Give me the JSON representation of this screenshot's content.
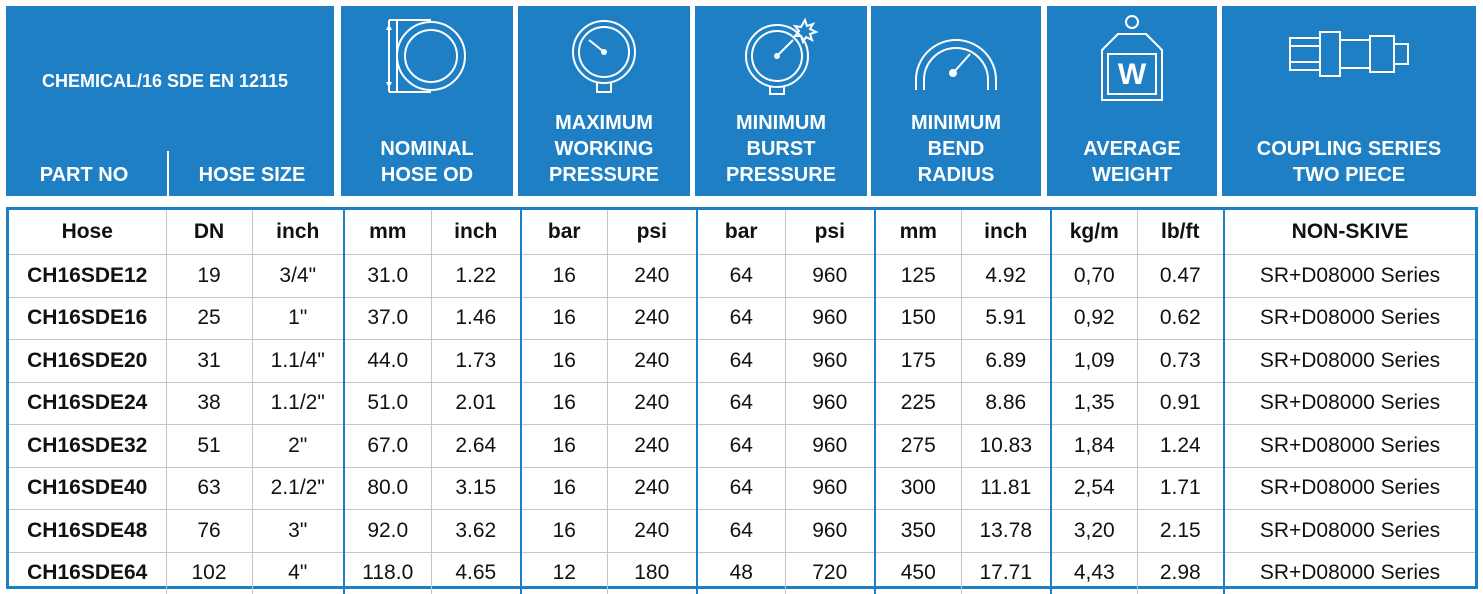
{
  "header": {
    "title": "CHEMICAL/16 SDE EN 12115",
    "part_no": "PART NO",
    "hose_size": "HOSE SIZE",
    "columns": [
      {
        "lines": [
          "NOMINAL",
          "HOSE OD"
        ],
        "icon": "hose-cross-section-icon"
      },
      {
        "lines": [
          "MAXIMUM",
          "WORKING",
          "PRESSURE"
        ],
        "icon": "pressure-gauge-icon"
      },
      {
        "lines": [
          "MINIMUM",
          "BURST",
          "PRESSURE"
        ],
        "icon": "burst-gauge-icon"
      },
      {
        "lines": [
          "MINIMUM",
          "BEND",
          "RADIUS"
        ],
        "icon": "bend-radius-icon"
      },
      {
        "lines": [
          "AVERAGE",
          "WEIGHT"
        ],
        "icon": "weight-icon"
      },
      {
        "lines": [
          "COUPLING SERIES",
          "TWO PIECE"
        ],
        "icon": "coupling-icon"
      }
    ]
  },
  "table": {
    "units": [
      "Hose",
      "DN",
      "inch",
      "mm",
      "inch",
      "bar",
      "psi",
      "bar",
      "psi",
      "mm",
      "inch",
      "kg/m",
      "lb/ft",
      "NON-SKIVE"
    ],
    "rows": [
      [
        "CH16SDE12",
        "19",
        "3/4\"",
        "31.0",
        "1.22",
        "16",
        "240",
        "64",
        "960",
        "125",
        "4.92",
        "0,70",
        "0.47",
        "SR+D08000 Series"
      ],
      [
        "CH16SDE16",
        "25",
        "1\"",
        "37.0",
        "1.46",
        "16",
        "240",
        "64",
        "960",
        "150",
        "5.91",
        "0,92",
        "0.62",
        "SR+D08000 Series"
      ],
      [
        "CH16SDE20",
        "31",
        "1.1/4\"",
        "44.0",
        "1.73",
        "16",
        "240",
        "64",
        "960",
        "175",
        "6.89",
        "1,09",
        "0.73",
        "SR+D08000 Series"
      ],
      [
        "CH16SDE24",
        "38",
        "1.1/2\"",
        "51.0",
        "2.01",
        "16",
        "240",
        "64",
        "960",
        "225",
        "8.86",
        "1,35",
        "0.91",
        "SR+D08000 Series"
      ],
      [
        "CH16SDE32",
        "51",
        "2\"",
        "67.0",
        "2.64",
        "16",
        "240",
        "64",
        "960",
        "275",
        "10.83",
        "1,84",
        "1.24",
        "SR+D08000 Series"
      ],
      [
        "CH16SDE40",
        "63",
        "2.1/2\"",
        "80.0",
        "3.15",
        "16",
        "240",
        "64",
        "960",
        "300",
        "11.81",
        "2,54",
        "1.71",
        "SR+D08000 Series"
      ],
      [
        "CH16SDE48",
        "76",
        "3\"",
        "92.0",
        "3.62",
        "16",
        "240",
        "64",
        "960",
        "350",
        "13.78",
        "3,20",
        "2.15",
        "SR+D08000 Series"
      ],
      [
        "CH16SDE64",
        "102",
        "4\"",
        "118.0",
        "4.65",
        "12",
        "180",
        "48",
        "720",
        "450",
        "17.71",
        "4,43",
        "2.98",
        "SR+D08000 Series"
      ]
    ]
  },
  "colors": {
    "brand_blue": "#1f7fc4",
    "grid": "#bfc8d2"
  }
}
